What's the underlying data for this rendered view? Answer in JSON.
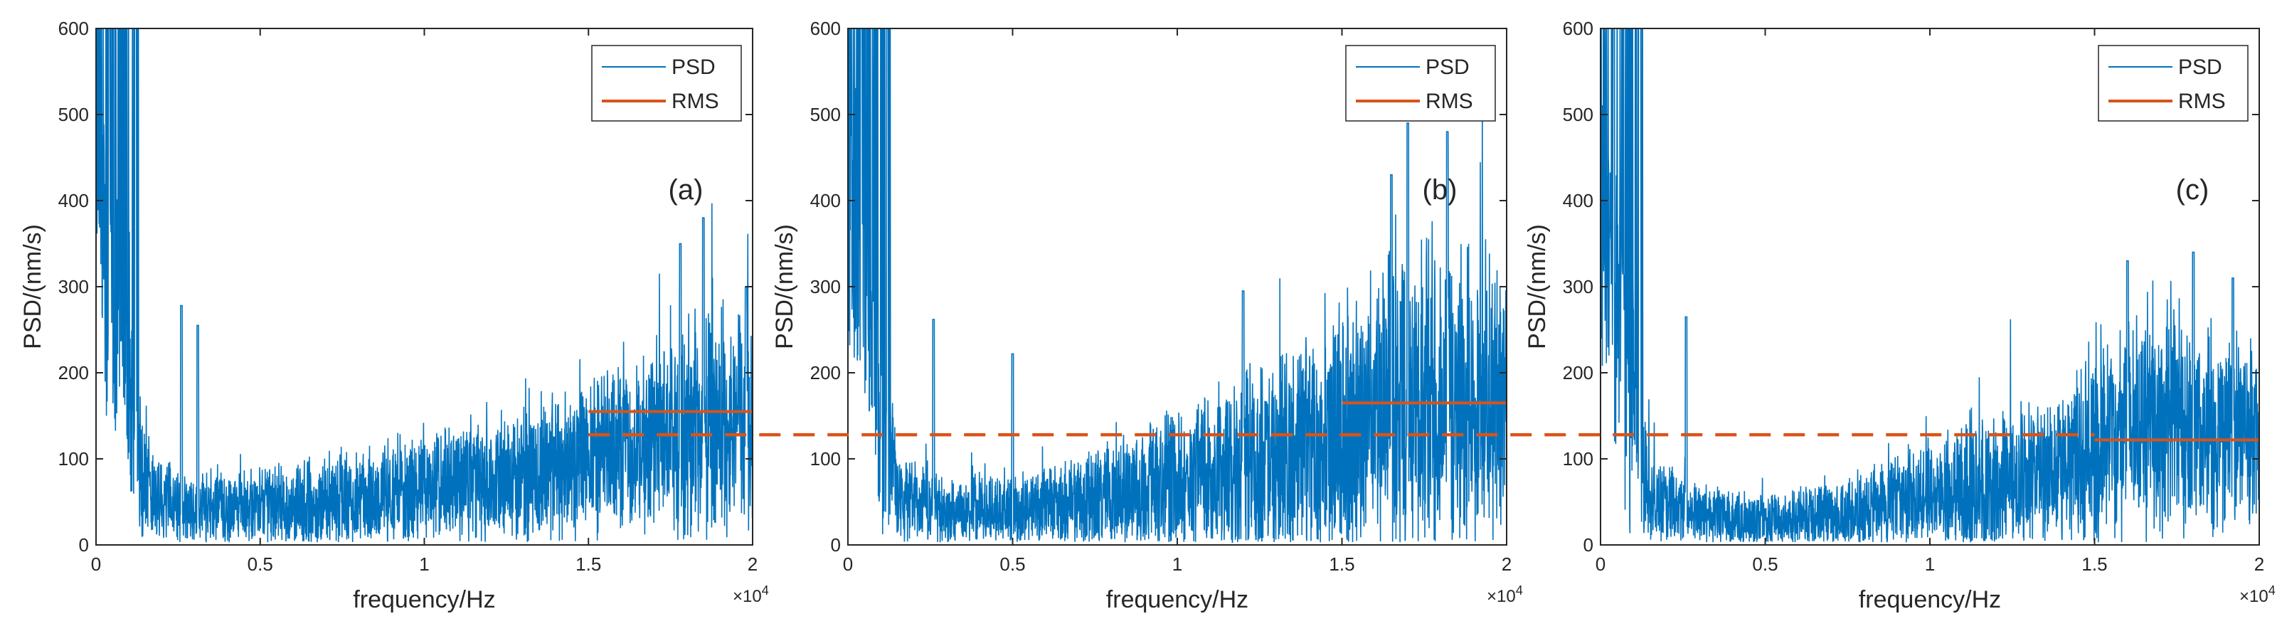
{
  "colors": {
    "psd": "#0072BD",
    "rms": "#D95319",
    "axis": "#262626"
  },
  "shared_ref_line": {
    "label": "RMS",
    "value": 128,
    "style": "dashed"
  },
  "chart_data": [
    {
      "type": "line",
      "panel_label": "(a)",
      "xlabel": "frequency/Hz",
      "ylabel": "PSD/(nm/s)",
      "x_exponent_label": "×10",
      "x_exponent_power": "4",
      "xlim": [
        0,
        2
      ],
      "ylim": [
        0,
        600
      ],
      "x_ticks": [
        0,
        0.5,
        1,
        1.5,
        2
      ],
      "x_tick_labels": [
        "0",
        "0.5",
        "1",
        "1.5",
        "2"
      ],
      "y_ticks": [
        0,
        100,
        200,
        300,
        400,
        500,
        600
      ],
      "y_tick_labels": [
        "0",
        "100",
        "200",
        "300",
        "400",
        "500",
        "600"
      ],
      "legend": {
        "position": "top-right",
        "entries": [
          "PSD",
          "RMS"
        ]
      },
      "series": [
        {
          "name": "PSD",
          "kind": "noise",
          "envelope_x": [
            0,
            0.05,
            0.1,
            0.15,
            0.3,
            0.5,
            0.8,
            1.0,
            1.2,
            1.4,
            1.5,
            1.7,
            1.9,
            2.0
          ],
          "envelope_mean": [
            420,
            260,
            160,
            60,
            42,
            45,
            55,
            68,
            78,
            88,
            100,
            120,
            140,
            150
          ],
          "envelope_spread": [
            200,
            180,
            150,
            60,
            40,
            45,
            55,
            65,
            75,
            80,
            90,
            110,
            130,
            135
          ],
          "spikes": [
            [
              0.04,
              600
            ],
            [
              0.12,
              600
            ],
            [
              0.26,
              278
            ],
            [
              0.31,
              255
            ],
            [
              1.85,
              380
            ],
            [
              1.78,
              350
            ],
            [
              1.98,
              300
            ]
          ]
        },
        {
          "name": "RMS",
          "x": [
            1.5,
            2.0
          ],
          "y": [
            155,
            155
          ]
        }
      ]
    },
    {
      "type": "line",
      "panel_label": "(b)",
      "xlabel": "frequency/Hz",
      "ylabel": "PSD/(nm/s)",
      "x_exponent_label": "×10",
      "x_exponent_power": "4",
      "xlim": [
        0,
        2
      ],
      "ylim": [
        0,
        600
      ],
      "x_ticks": [
        0,
        0.5,
        1,
        1.5,
        2
      ],
      "x_tick_labels": [
        "0",
        "0.5",
        "1",
        "1.5",
        "2"
      ],
      "y_ticks": [
        0,
        100,
        200,
        300,
        400,
        500,
        600
      ],
      "y_tick_labels": [
        "0",
        "100",
        "200",
        "300",
        "400",
        "500",
        "600"
      ],
      "legend": {
        "position": "top-right",
        "entries": [
          "PSD",
          "RMS"
        ]
      },
      "series": [
        {
          "name": "PSD",
          "kind": "noise",
          "envelope_x": [
            0,
            0.05,
            0.1,
            0.15,
            0.3,
            0.5,
            0.8,
            1.0,
            1.2,
            1.4,
            1.5,
            1.7,
            1.9,
            2.0
          ],
          "envelope_mean": [
            430,
            280,
            170,
            55,
            38,
            40,
            55,
            75,
            95,
            110,
            130,
            170,
            180,
            175
          ],
          "envelope_spread": [
            200,
            190,
            160,
            55,
            35,
            40,
            60,
            80,
            110,
            120,
            140,
            180,
            170,
            150
          ],
          "spikes": [
            [
              0.04,
              600
            ],
            [
              0.12,
              600
            ],
            [
              0.26,
              262
            ],
            [
              0.5,
              222
            ],
            [
              1.7,
              490
            ],
            [
              1.82,
              480
            ],
            [
              1.65,
              430
            ],
            [
              1.2,
              295
            ]
          ]
        },
        {
          "name": "RMS",
          "x": [
            1.5,
            2.0
          ],
          "y": [
            165,
            165
          ]
        }
      ]
    },
    {
      "type": "line",
      "panel_label": "(c)",
      "xlabel": "frequency/Hz",
      "ylabel": "PSD/(nm/s)",
      "x_exponent_label": "×10",
      "x_exponent_power": "4",
      "xlim": [
        0,
        2
      ],
      "ylim": [
        0,
        600
      ],
      "x_ticks": [
        0,
        0.5,
        1,
        1.5,
        2
      ],
      "x_tick_labels": [
        "0",
        "0.5",
        "1",
        "1.5",
        "2"
      ],
      "y_ticks": [
        0,
        100,
        200,
        300,
        400,
        500,
        600
      ],
      "y_tick_labels": [
        "0",
        "100",
        "200",
        "300",
        "400",
        "500",
        "600"
      ],
      "legend": {
        "position": "top-right",
        "entries": [
          "PSD",
          "RMS"
        ]
      },
      "series": [
        {
          "name": "PSD",
          "kind": "noise",
          "envelope_x": [
            0,
            0.05,
            0.1,
            0.15,
            0.3,
            0.5,
            0.8,
            1.0,
            1.2,
            1.4,
            1.5,
            1.7,
            1.9,
            2.0
          ],
          "envelope_mean": [
            430,
            270,
            160,
            50,
            35,
            28,
            40,
            55,
            70,
            85,
            110,
            140,
            130,
            120
          ],
          "envelope_spread": [
            200,
            190,
            150,
            50,
            35,
            30,
            45,
            60,
            80,
            85,
            110,
            130,
            120,
            110
          ],
          "spikes": [
            [
              0.04,
              600
            ],
            [
              0.12,
              600
            ],
            [
              0.26,
              265
            ],
            [
              1.6,
              330
            ],
            [
              1.8,
              340
            ],
            [
              1.92,
              310
            ]
          ]
        },
        {
          "name": "RMS",
          "x": [
            1.5,
            2.0
          ],
          "y": [
            122,
            122
          ]
        }
      ]
    }
  ]
}
